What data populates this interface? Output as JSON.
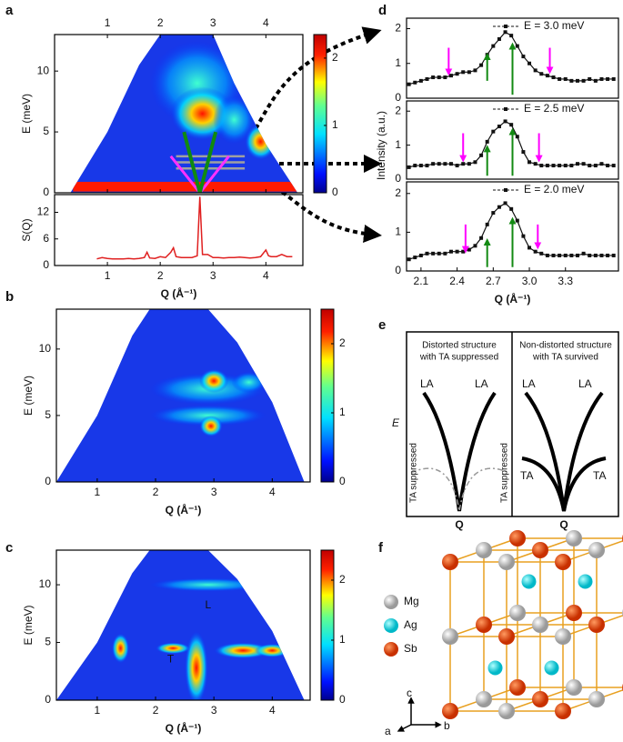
{
  "panel_labels": [
    "a",
    "b",
    "c",
    "d",
    "e",
    "f"
  ],
  "chart_data": [
    {
      "type": "heatmap",
      "xlim": [
        0,
        4.7
      ],
      "ylim": [
        0,
        13
      ],
      "xticks": [
        1,
        2,
        3,
        4
      ],
      "yticks": [
        0,
        5,
        10
      ],
      "top_xticks": true,
      "ylabel": "E (meV)",
      "colorbar": {
        "lim": [
          0,
          2.35
        ],
        "ticks": [
          0,
          1,
          2
        ]
      }
    },
    {
      "type": "line",
      "xlim": [
        0,
        4.7
      ],
      "ylim": [
        0,
        16
      ],
      "xticks": [
        1,
        2,
        3,
        4
      ],
      "yticks": [
        0,
        6,
        12
      ],
      "xlabel": "Q (Å⁻¹)",
      "ylabel": "S(Q)",
      "color": "#e02020",
      "x": [
        0.8,
        0.9,
        1.0,
        1.1,
        1.2,
        1.3,
        1.4,
        1.5,
        1.6,
        1.7,
        1.75,
        1.8,
        1.9,
        2.0,
        2.1,
        2.2,
        2.25,
        2.3,
        2.4,
        2.5,
        2.6,
        2.7,
        2.75,
        2.8,
        2.9,
        3.0,
        3.1,
        3.2,
        3.3,
        3.4,
        3.5,
        3.6,
        3.7,
        3.8,
        3.9,
        4.0,
        4.05,
        4.1,
        4.2,
        4.3,
        4.4,
        4.5
      ],
      "values": [
        1.5,
        1.8,
        1.6,
        1.5,
        1.5,
        1.5,
        1.6,
        1.5,
        1.6,
        1.8,
        3,
        1.7,
        1.6,
        2,
        1.8,
        3,
        4,
        2,
        1.8,
        1.8,
        1.8,
        2.2,
        15.5,
        2.5,
        2.5,
        1.8,
        1.8,
        1.7,
        1.8,
        1.8,
        1.9,
        1.8,
        1.7,
        1.8,
        2.0,
        3.5,
        2.2,
        2.0,
        2.0,
        2.5,
        2.0,
        2.0
      ]
    },
    {
      "type": "heatmap",
      "xlim": [
        0.3,
        4.65
      ],
      "ylim": [
        0,
        13
      ],
      "xticks": [
        1,
        2,
        3,
        4
      ],
      "yticks": [
        0,
        5,
        10
      ],
      "xlabel": "Q (Å⁻¹)",
      "ylabel": "E (meV)",
      "colorbar": {
        "lim": [
          0,
          2.5
        ],
        "ticks": [
          0,
          1,
          2
        ]
      }
    },
    {
      "type": "heatmap",
      "xlim": [
        0.3,
        4.65
      ],
      "ylim": [
        0,
        13
      ],
      "xticks": [
        1,
        2,
        3,
        4
      ],
      "yticks": [
        0,
        5,
        10
      ],
      "xlabel": "Q (Å⁻¹)",
      "ylabel": "E (meV)",
      "colorbar": {
        "lim": [
          0,
          2.5
        ],
        "ticks": [
          0,
          1,
          2
        ]
      },
      "annotations": [
        "L",
        "T"
      ]
    },
    {
      "type": "line",
      "xlim": [
        1.98,
        3.74
      ],
      "ylim": [
        0,
        2.3
      ],
      "yticks": [
        0,
        1,
        2
      ],
      "legend": "E = 3.0 meV",
      "color": "#111111",
      "x": [
        2.0,
        2.05,
        2.1,
        2.15,
        2.2,
        2.25,
        2.3,
        2.35,
        2.4,
        2.45,
        2.5,
        2.55,
        2.6,
        2.65,
        2.7,
        2.75,
        2.8,
        2.85,
        2.9,
        2.95,
        3.0,
        3.05,
        3.1,
        3.15,
        3.2,
        3.25,
        3.3,
        3.35,
        3.4,
        3.45,
        3.5,
        3.55,
        3.6,
        3.65,
        3.7
      ],
      "values": [
        0.4,
        0.45,
        0.5,
        0.55,
        0.6,
        0.6,
        0.6,
        0.65,
        0.7,
        0.75,
        0.75,
        0.8,
        0.95,
        1.25,
        1.5,
        1.7,
        1.9,
        1.8,
        1.5,
        1.2,
        1.0,
        0.8,
        0.7,
        0.65,
        0.6,
        0.55,
        0.55,
        0.5,
        0.5,
        0.5,
        0.55,
        0.5,
        0.55,
        0.55,
        0.55
      ]
    },
    {
      "type": "line",
      "xlim": [
        1.98,
        3.74
      ],
      "ylim": [
        0,
        2.3
      ],
      "yticks": [
        0,
        1,
        2
      ],
      "legend": "E = 2.5 meV",
      "ylabel": "Intensity (a.u.)",
      "color": "#111111",
      "x": [
        2.0,
        2.05,
        2.1,
        2.15,
        2.2,
        2.25,
        2.3,
        2.35,
        2.4,
        2.45,
        2.5,
        2.55,
        2.6,
        2.65,
        2.7,
        2.75,
        2.8,
        2.85,
        2.9,
        2.95,
        3.0,
        3.05,
        3.1,
        3.15,
        3.2,
        3.25,
        3.3,
        3.35,
        3.4,
        3.45,
        3.5,
        3.55,
        3.6,
        3.65,
        3.7
      ],
      "values": [
        0.35,
        0.4,
        0.4,
        0.4,
        0.45,
        0.45,
        0.45,
        0.45,
        0.4,
        0.45,
        0.45,
        0.5,
        0.7,
        1.1,
        1.4,
        1.55,
        1.7,
        1.6,
        1.25,
        0.8,
        0.5,
        0.45,
        0.4,
        0.4,
        0.4,
        0.4,
        0.4,
        0.4,
        0.45,
        0.45,
        0.4,
        0.4,
        0.45,
        0.4,
        0.4
      ]
    },
    {
      "type": "line",
      "xlim": [
        1.98,
        3.74
      ],
      "ylim": [
        0,
        2.3
      ],
      "xticks": [
        2.1,
        2.4,
        2.7,
        {
          "value": 3.0,
          "label": "3.0"
        },
        3.3
      ],
      "yticks": [
        0,
        1,
        2
      ],
      "legend": "E = 2.0 meV",
      "xlabel": "Q (Å⁻¹)",
      "color": "#111111",
      "x": [
        2.0,
        2.05,
        2.1,
        2.15,
        2.2,
        2.25,
        2.3,
        2.35,
        2.4,
        2.45,
        2.5,
        2.55,
        2.6,
        2.65,
        2.7,
        2.75,
        2.8,
        2.85,
        2.9,
        2.95,
        3.0,
        3.05,
        3.1,
        3.15,
        3.2,
        3.25,
        3.3,
        3.35,
        3.4,
        3.45,
        3.5,
        3.55,
        3.6,
        3.65,
        3.7
      ],
      "values": [
        0.3,
        0.35,
        0.4,
        0.45,
        0.45,
        0.45,
        0.45,
        0.5,
        0.5,
        0.5,
        0.55,
        0.65,
        0.85,
        1.2,
        1.5,
        1.65,
        1.75,
        1.6,
        1.3,
        0.9,
        0.6,
        0.5,
        0.45,
        0.4,
        0.4,
        0.4,
        0.4,
        0.4,
        0.4,
        0.45,
        0.4,
        0.4,
        0.4,
        0.4,
        0.4
      ]
    }
  ],
  "diagram_e": {
    "ylabel": "E",
    "left": {
      "title": [
        "Distorted structure",
        "with TA suppressed"
      ],
      "branch_labels": [
        "LA",
        "LA"
      ],
      "ta_labels": [
        "TA suppressed",
        "TA suppressed"
      ],
      "xlabel": "Q"
    },
    "right": {
      "title": [
        "Non-distorted structure",
        "with TA survived"
      ],
      "branch_labels": [
        "LA",
        "LA"
      ],
      "ta_labels": [
        "TA",
        "TA"
      ],
      "xlabel": "Q"
    }
  },
  "structure_f": {
    "legend": [
      "Mg",
      "Ag",
      "Sb"
    ],
    "axes": [
      "c",
      "a",
      "b"
    ]
  }
}
